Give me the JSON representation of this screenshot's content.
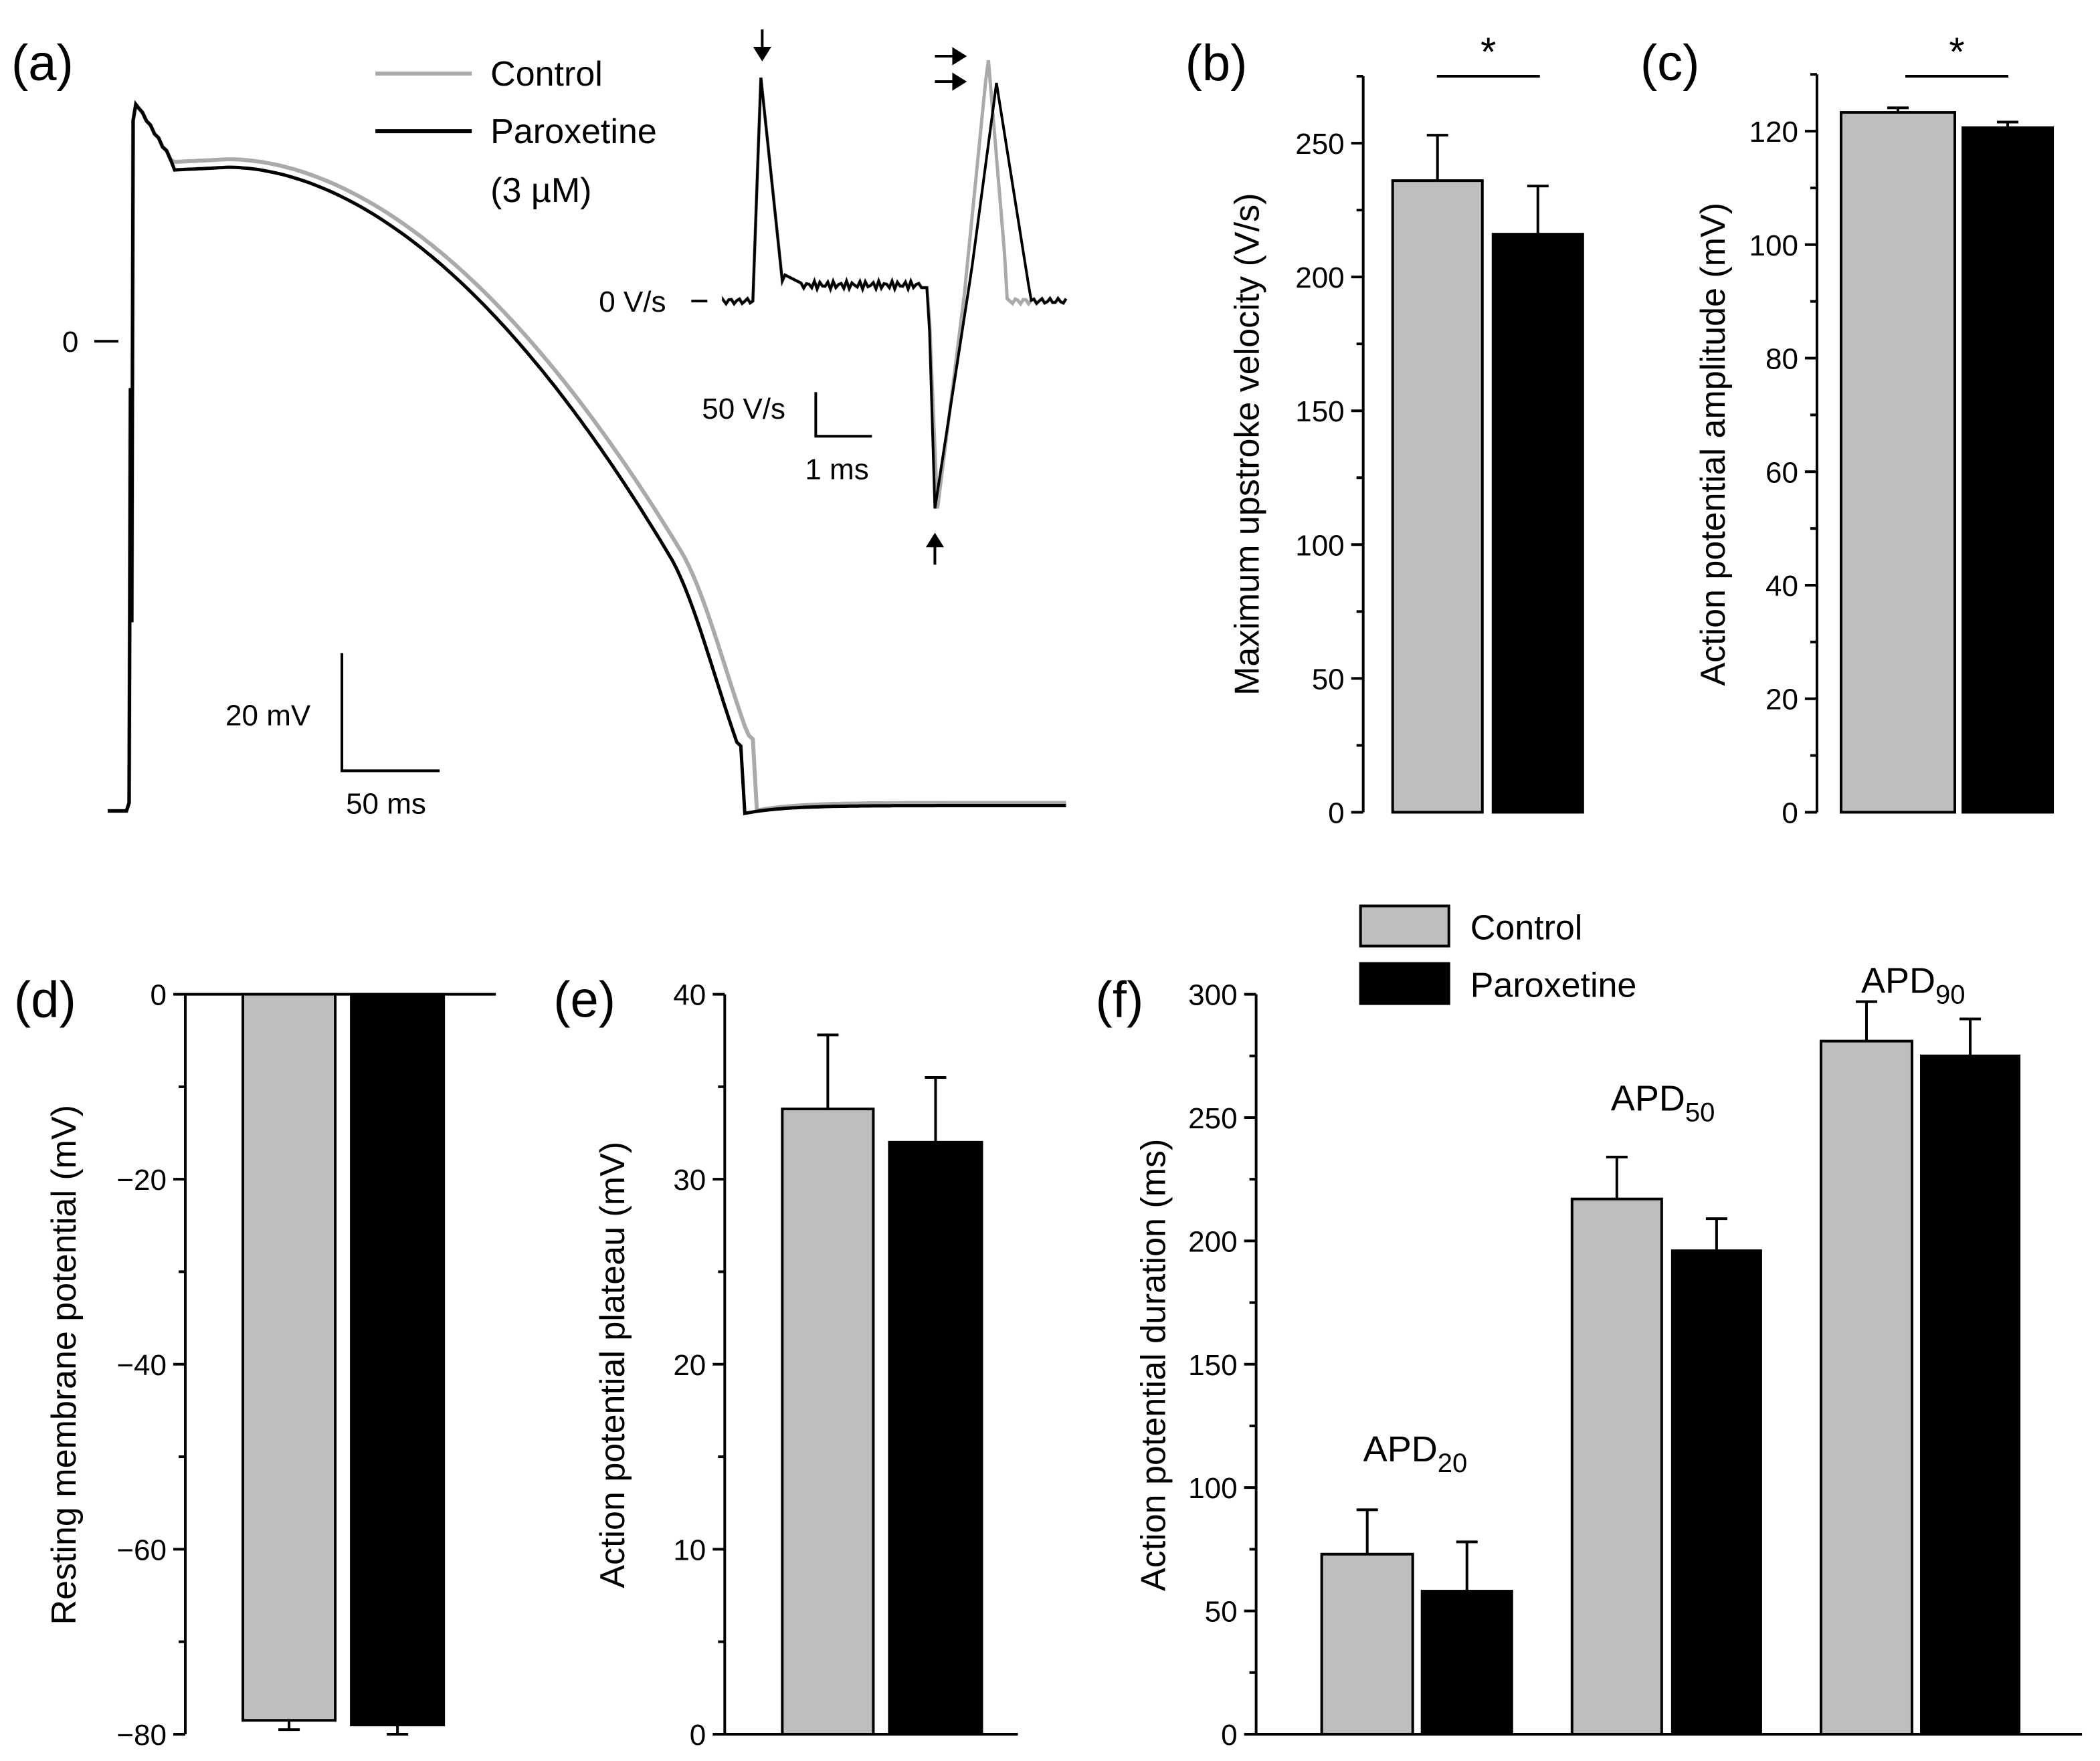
{
  "colors": {
    "control": "#bebebe",
    "paroxetine": "#000000",
    "control_trace": "#aaaaaa"
  },
  "chart_data": [
    {
      "panel": "(a)",
      "type": "line",
      "legend": [
        "Control",
        "Paroxetine",
        "(3 µM)"
      ],
      "zero_label": "0",
      "scalebar": {
        "v": "20 mV",
        "h": "50 ms"
      },
      "inset": {
        "zero_label": "0 V/s",
        "scalebar_v": "50 V/s",
        "scalebar_h": "1 ms"
      }
    },
    {
      "panel": "(b)",
      "type": "bar",
      "ylabel": "Maximum upstroke velocity (V/s)",
      "ylim": [
        0,
        275
      ],
      "yticks": [
        "0",
        "50",
        "100",
        "150",
        "200",
        "250"
      ],
      "series": [
        {
          "name": "Control",
          "values": [
            236
          ],
          "err": [
            17
          ]
        },
        {
          "name": "Paroxetine",
          "values": [
            216
          ],
          "err": [
            18
          ]
        }
      ],
      "annotation": "*"
    },
    {
      "panel": "(c)",
      "type": "bar",
      "ylabel": "Action potential amplitude (mV)",
      "ylim": [
        0,
        130
      ],
      "yticks": [
        "0",
        "20",
        "40",
        "60",
        "80",
        "100",
        "120"
      ],
      "series": [
        {
          "name": "Control",
          "values": [
            123.3
          ],
          "err": [
            0.8
          ]
        },
        {
          "name": "Paroxetine",
          "values": [
            120.6
          ],
          "err": [
            1.0
          ]
        }
      ],
      "annotation": "*"
    },
    {
      "panel": "(d)",
      "type": "bar",
      "ylabel": "Resting membrane potential (mV)",
      "ylim": [
        -80,
        0
      ],
      "yticks": [
        "0",
        "−20",
        "−40",
        "−60",
        "−80"
      ],
      "series": [
        {
          "name": "Control",
          "values": [
            -78.5
          ],
          "err": [
            1.0
          ]
        },
        {
          "name": "Paroxetine",
          "values": [
            -79.0
          ],
          "err": [
            1.0
          ]
        }
      ]
    },
    {
      "panel": "(e)",
      "type": "bar",
      "ylabel": "Action potential plateau (mV)",
      "ylim": [
        0,
        40
      ],
      "yticks": [
        "0",
        "10",
        "20",
        "30",
        "40"
      ],
      "series": [
        {
          "name": "Control",
          "values": [
            33.8
          ],
          "err": [
            4.0
          ]
        },
        {
          "name": "Paroxetine",
          "values": [
            32.0
          ],
          "err": [
            3.5
          ]
        }
      ]
    },
    {
      "panel": "(f)",
      "type": "bar",
      "ylabel": "Action potential duration (ms)",
      "ylim": [
        0,
        300
      ],
      "yticks": [
        "0",
        "50",
        "100",
        "150",
        "200",
        "250",
        "300"
      ],
      "categories": [
        "APD20",
        "APD50",
        "APD90"
      ],
      "category_labels": [
        {
          "main": "APD",
          "sub": "20"
        },
        {
          "main": "APD",
          "sub": "50"
        },
        {
          "main": "APD",
          "sub": "90"
        }
      ],
      "legend": [
        "Control",
        "Paroxetine"
      ],
      "series": [
        {
          "name": "Control",
          "values": [
            73,
            217,
            281
          ],
          "err": [
            18,
            17,
            16
          ]
        },
        {
          "name": "Paroxetine",
          "values": [
            58,
            196,
            275
          ],
          "err": [
            20,
            13,
            15
          ]
        }
      ]
    }
  ]
}
